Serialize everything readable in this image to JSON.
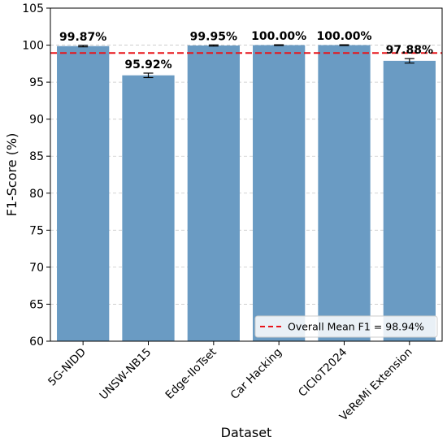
{
  "chart_data": {
    "type": "bar",
    "xlabel": "Dataset",
    "ylabel": "F1-Score (%)",
    "ylim": [
      60,
      105
    ],
    "yticks": [
      60,
      65,
      70,
      75,
      80,
      85,
      90,
      95,
      100,
      105
    ],
    "grid": "y, dashed",
    "categories": [
      "5G-NIDD",
      "UNSW-NB15",
      "Edge-IIoTset",
      "Car Hacking",
      "CICIoT2024",
      "VeReMi Extension"
    ],
    "values": [
      99.87,
      95.92,
      99.95,
      100.0,
      100.0,
      97.88
    ],
    "value_labels": [
      "99.87%",
      "95.92%",
      "99.95%",
      "100.00%",
      "100.00%",
      "97.88%"
    ],
    "error": [
      0.1,
      0.3,
      0.08,
      0.05,
      0.05,
      0.3
    ],
    "bar_color": "#6a9bc3",
    "mean_line": {
      "value": 98.94,
      "label": "Overall Mean F1 = 98.94%",
      "color": "#e8141a",
      "style": "dashed"
    },
    "legend_position": "lower-right"
  }
}
